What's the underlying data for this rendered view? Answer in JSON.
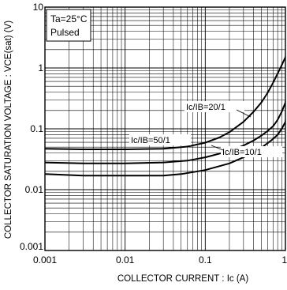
{
  "chart_data": {
    "type": "line",
    "title": "",
    "xlabel": "COLLECTOR  CURRENT : Ic (A)",
    "ylabel": "COLLECTOR SATURATION VOLTAGE : VCE(sat) (V)",
    "x_scale": "log",
    "y_scale": "log",
    "xlim": [
      0.001,
      1
    ],
    "ylim": [
      0.001,
      10
    ],
    "x_ticks": [
      "0.001",
      "0.01",
      "0.1",
      "1"
    ],
    "y_ticks": [
      "0.001",
      "0.01",
      "0.1",
      "1",
      "10"
    ],
    "grid": true,
    "annotations": [
      "Ta=25°C",
      "Pulsed"
    ],
    "series": [
      {
        "name": "Ic/IB=50/1",
        "points": [
          [
            0.001,
            0.047
          ],
          [
            0.003,
            0.046
          ],
          [
            0.01,
            0.046
          ],
          [
            0.03,
            0.047
          ],
          [
            0.06,
            0.051
          ],
          [
            0.1,
            0.059
          ],
          [
            0.15,
            0.072
          ],
          [
            0.2,
            0.088
          ],
          [
            0.3,
            0.13
          ],
          [
            0.4,
            0.19
          ],
          [
            0.5,
            0.27
          ],
          [
            0.6,
            0.39
          ],
          [
            0.7,
            0.57
          ],
          [
            0.85,
            0.95
          ],
          [
            1,
            1.5
          ],
          [
            1.07,
            2.1
          ]
        ]
      },
      {
        "name": "Ic/IB=20/1",
        "points": [
          [
            0.001,
            0.028
          ],
          [
            0.003,
            0.027
          ],
          [
            0.01,
            0.027
          ],
          [
            0.03,
            0.028
          ],
          [
            0.06,
            0.03
          ],
          [
            0.1,
            0.034
          ],
          [
            0.2,
            0.043
          ],
          [
            0.3,
            0.053
          ],
          [
            0.4,
            0.064
          ],
          [
            0.5,
            0.077
          ],
          [
            0.6,
            0.092
          ],
          [
            0.7,
            0.11
          ],
          [
            0.8,
            0.14
          ],
          [
            0.9,
            0.19
          ],
          [
            1,
            0.27
          ],
          [
            1.07,
            0.58
          ]
        ]
      },
      {
        "name": "Ic/IB=10/1",
        "points": [
          [
            0.001,
            0.018
          ],
          [
            0.003,
            0.017
          ],
          [
            0.01,
            0.017
          ],
          [
            0.03,
            0.017
          ],
          [
            0.05,
            0.018
          ],
          [
            0.1,
            0.021
          ],
          [
            0.2,
            0.027
          ],
          [
            0.3,
            0.034
          ],
          [
            0.4,
            0.041
          ],
          [
            0.5,
            0.049
          ],
          [
            0.6,
            0.058
          ],
          [
            0.7,
            0.068
          ],
          [
            0.8,
            0.08
          ],
          [
            0.9,
            0.1
          ],
          [
            1,
            0.13
          ],
          [
            1.07,
            0.27
          ]
        ]
      }
    ]
  }
}
